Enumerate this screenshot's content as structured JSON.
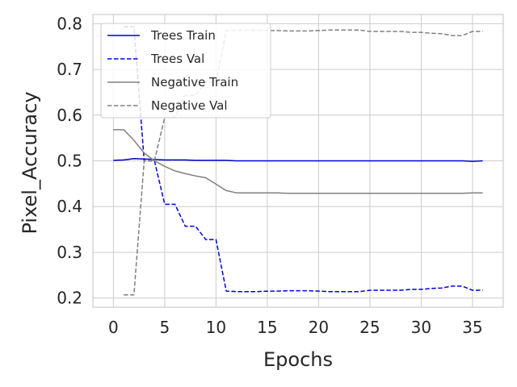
{
  "chart_data": {
    "type": "line",
    "title": "",
    "xlabel": "Epochs",
    "ylabel": "Pixel_Accuracy",
    "xlim": [
      -2,
      38
    ],
    "ylim": [
      0.18,
      0.82
    ],
    "xticks": [
      0,
      5,
      10,
      15,
      20,
      25,
      30,
      35
    ],
    "yticks": [
      0.2,
      0.3,
      0.4,
      0.5,
      0.6,
      0.7,
      0.8
    ],
    "ytick_labels": [
      "0.2",
      "0.3",
      "0.4",
      "0.5",
      "0.6",
      "0.7",
      "0.8"
    ],
    "grid": true,
    "legend_position": "top-left",
    "series": [
      {
        "name": "Trees Train",
        "color": "#0000cc",
        "dash": "solid",
        "x": [
          0,
          1,
          2,
          3,
          4,
          5,
          6,
          7,
          8,
          9,
          10,
          11,
          12,
          13,
          14,
          15,
          16,
          17,
          18,
          19,
          20,
          21,
          22,
          23,
          24,
          25,
          26,
          27,
          28,
          29,
          30,
          31,
          32,
          33,
          34,
          35,
          36
        ],
        "y": [
          0.501,
          0.502,
          0.505,
          0.504,
          0.503,
          0.502,
          0.502,
          0.502,
          0.501,
          0.501,
          0.501,
          0.501,
          0.5,
          0.5,
          0.5,
          0.5,
          0.5,
          0.5,
          0.5,
          0.5,
          0.5,
          0.5,
          0.5,
          0.5,
          0.5,
          0.5,
          0.5,
          0.5,
          0.5,
          0.5,
          0.5,
          0.5,
          0.5,
          0.5,
          0.5,
          0.499,
          0.5
        ]
      },
      {
        "name": "Trees Val",
        "color": "#0000ee",
        "dash": "dashed",
        "x": [
          1,
          2,
          3,
          4,
          5,
          6,
          7,
          8,
          9,
          10,
          11,
          12,
          13,
          14,
          15,
          16,
          17,
          18,
          19,
          20,
          21,
          22,
          23,
          24,
          25,
          26,
          27,
          28,
          29,
          30,
          31,
          32,
          33,
          34,
          35,
          36
        ],
        "y": [
          0.793,
          0.793,
          0.5,
          0.5,
          0.405,
          0.405,
          0.357,
          0.357,
          0.328,
          0.328,
          0.215,
          0.214,
          0.214,
          0.214,
          0.215,
          0.215,
          0.216,
          0.216,
          0.216,
          0.215,
          0.214,
          0.214,
          0.214,
          0.214,
          0.217,
          0.217,
          0.217,
          0.217,
          0.219,
          0.219,
          0.221,
          0.222,
          0.226,
          0.226,
          0.217,
          0.217
        ]
      },
      {
        "name": "Negative Train",
        "color": "#808080",
        "dash": "solid",
        "x": [
          0,
          1,
          2,
          3,
          4,
          5,
          6,
          7,
          8,
          9,
          10,
          11,
          12,
          13,
          14,
          15,
          16,
          17,
          18,
          19,
          20,
          21,
          22,
          23,
          24,
          25,
          26,
          27,
          28,
          29,
          30,
          31,
          32,
          33,
          34,
          35,
          36
        ],
        "y": [
          0.568,
          0.568,
          0.545,
          0.517,
          0.5,
          0.488,
          0.478,
          0.472,
          0.467,
          0.463,
          0.449,
          0.435,
          0.43,
          0.43,
          0.43,
          0.43,
          0.43,
          0.429,
          0.429,
          0.429,
          0.429,
          0.429,
          0.429,
          0.429,
          0.429,
          0.429,
          0.429,
          0.429,
          0.429,
          0.429,
          0.429,
          0.429,
          0.429,
          0.429,
          0.429,
          0.43,
          0.43
        ]
      },
      {
        "name": "Negative Val",
        "color": "#808080",
        "dash": "dashed",
        "x": [
          1,
          2,
          3,
          4,
          5,
          6,
          7,
          8,
          9,
          10,
          11,
          12,
          13,
          14,
          15,
          16,
          17,
          18,
          19,
          20,
          21,
          22,
          23,
          24,
          25,
          26,
          27,
          28,
          29,
          30,
          31,
          32,
          33,
          34,
          35,
          36
        ],
        "y": [
          0.207,
          0.207,
          0.5,
          0.5,
          0.595,
          0.595,
          0.643,
          0.643,
          0.672,
          0.672,
          0.785,
          0.786,
          0.786,
          0.786,
          0.785,
          0.785,
          0.784,
          0.784,
          0.784,
          0.785,
          0.786,
          0.786,
          0.786,
          0.786,
          0.783,
          0.783,
          0.783,
          0.783,
          0.781,
          0.781,
          0.779,
          0.778,
          0.774,
          0.774,
          0.783,
          0.783
        ]
      }
    ]
  }
}
